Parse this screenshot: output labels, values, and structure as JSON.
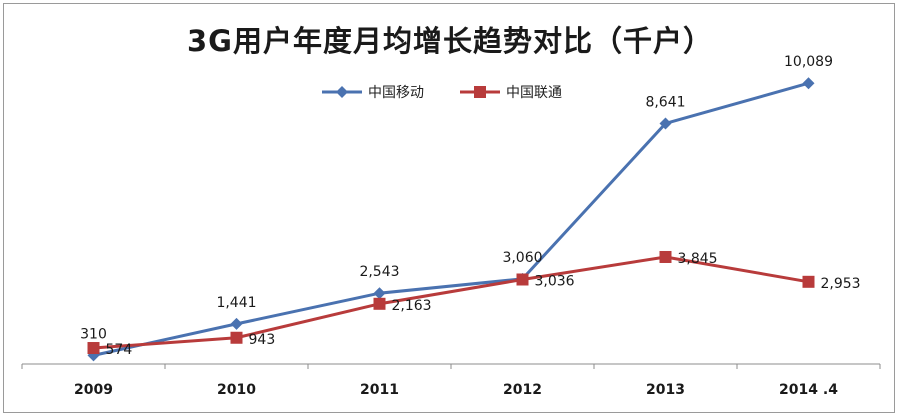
{
  "chart_data": {
    "type": "line",
    "title": "3G用户年度月均增长趋势对比（千户）",
    "categories": [
      "2009",
      "2010",
      "2011",
      "2012",
      "2013",
      "2014 .4"
    ],
    "series": [
      {
        "name": "中国移动",
        "color": "#4a72b0",
        "marker": "diamond",
        "values": [
          310,
          1441,
          2543,
          3060,
          8641,
          10089
        ],
        "labels": [
          "310",
          "1,441",
          "2,543",
          "3,060",
          "8,641",
          "10,089"
        ]
      },
      {
        "name": "中国联通",
        "color": "#b83b3b",
        "marker": "square",
        "values": [
          574,
          943,
          2163,
          3036,
          3845,
          2953
        ],
        "labels": [
          "574",
          "943",
          "2,163",
          "3,036",
          "3,845",
          "2,953"
        ]
      }
    ],
    "xlabel": "",
    "ylabel": "",
    "ylim": [
      0,
      12000
    ],
    "grid": false,
    "legend_position": "top-center"
  }
}
